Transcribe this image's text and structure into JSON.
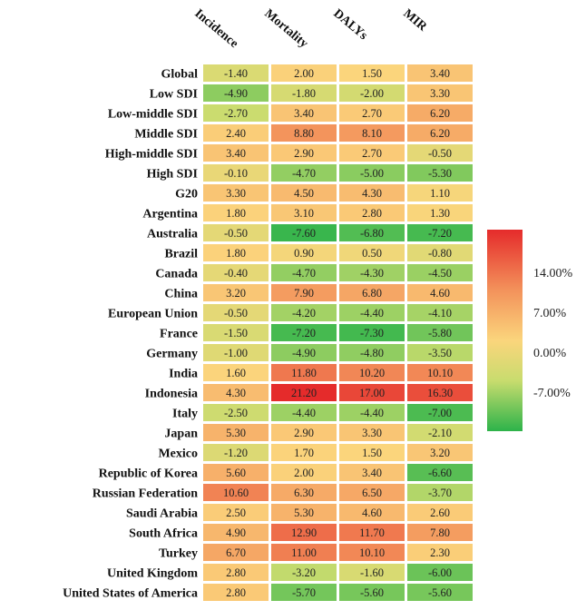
{
  "chart_data": {
    "type": "heatmap",
    "columns": [
      "Incidence",
      "Mortality",
      "DALYs",
      "MIR"
    ],
    "rows": [
      "Global",
      "Low SDI",
      "Low-middle SDI",
      "Middle SDI",
      "High-middle SDI",
      "High SDI",
      "G20",
      "Argentina",
      "Australia",
      "Brazil",
      "Canada",
      "China",
      "European Union",
      "France",
      "Germany",
      "India",
      "Indonesia",
      "Italy",
      "Japan",
      "Mexico",
      "Republic of Korea",
      "Russian Federation",
      "Saudi Arabia",
      "South Africa",
      "Turkey",
      "United Kingdom",
      "United States of America"
    ],
    "values": [
      [
        -1.4,
        2.0,
        1.5,
        3.4
      ],
      [
        -4.9,
        -1.8,
        -2.0,
        3.3
      ],
      [
        -2.7,
        3.4,
        2.7,
        6.2
      ],
      [
        2.4,
        8.8,
        8.1,
        6.2
      ],
      [
        3.4,
        2.9,
        2.7,
        -0.5
      ],
      [
        -0.1,
        -4.7,
        -5.0,
        -5.3
      ],
      [
        3.3,
        4.5,
        4.3,
        1.1
      ],
      [
        1.8,
        3.1,
        2.8,
        1.3
      ],
      [
        -0.5,
        -7.6,
        -6.8,
        -7.2
      ],
      [
        1.8,
        0.9,
        0.5,
        -0.8
      ],
      [
        -0.4,
        -4.7,
        -4.3,
        -4.5
      ],
      [
        3.2,
        7.9,
        6.8,
        4.6
      ],
      [
        -0.5,
        -4.2,
        -4.4,
        -4.1
      ],
      [
        -1.5,
        -7.2,
        -7.3,
        -5.8
      ],
      [
        -1.0,
        -4.9,
        -4.8,
        -3.5
      ],
      [
        1.6,
        11.8,
        10.2,
        10.1
      ],
      [
        4.3,
        21.2,
        17.0,
        16.3
      ],
      [
        -2.5,
        -4.4,
        -4.4,
        -7.0
      ],
      [
        5.3,
        2.9,
        3.3,
        -2.1
      ],
      [
        -1.2,
        1.7,
        1.5,
        3.2
      ],
      [
        5.6,
        2.0,
        3.4,
        -6.6
      ],
      [
        10.6,
        6.3,
        6.5,
        -3.7
      ],
      [
        2.5,
        5.3,
        4.6,
        2.6
      ],
      [
        4.9,
        12.9,
        11.7,
        7.8
      ],
      [
        6.7,
        11.0,
        10.1,
        2.3
      ],
      [
        2.8,
        -3.2,
        -1.6,
        -6.0
      ],
      [
        2.8,
        -5.7,
        -5.6,
        -5.6
      ]
    ],
    "value_labels": [
      [
        "-1.40",
        "2.00",
        "1.50",
        "3.40"
      ],
      [
        "-4.90",
        "-1.80",
        "-2.00",
        "3.30"
      ],
      [
        "-2.70",
        "3.40",
        "2.70",
        "6.20"
      ],
      [
        "2.40",
        "8.80",
        "8.10",
        "6.20"
      ],
      [
        "3.40",
        "2.90",
        "2.70",
        "-0.50"
      ],
      [
        "-0.10",
        "-4.70",
        "-5.00",
        "-5.30"
      ],
      [
        "3.30",
        "4.50",
        "4.30",
        "1.10"
      ],
      [
        "1.80",
        "3.10",
        "2.80",
        "1.30"
      ],
      [
        "-0.50",
        "-7.60",
        "-6.80",
        "-7.20"
      ],
      [
        "1.80",
        "0.90",
        "0.50",
        "-0.80"
      ],
      [
        "-0.40",
        "-4.70",
        "-4.30",
        "-4.50"
      ],
      [
        "3.20",
        "7.90",
        "6.80",
        "4.60"
      ],
      [
        "-0.50",
        "-4.20",
        "-4.40",
        "-4.10"
      ],
      [
        "-1.50",
        "-7.20",
        "-7.30",
        "-5.80"
      ],
      [
        "-1.00",
        "-4.90",
        "-4.80",
        "-3.50"
      ],
      [
        "1.60",
        "11.80",
        "10.20",
        "10.10"
      ],
      [
        "4.30",
        "21.20",
        "17.00",
        "16.30"
      ],
      [
        "-2.50",
        "-4.40",
        "-4.40",
        "-7.00"
      ],
      [
        "5.30",
        "2.90",
        "3.30",
        "-2.10"
      ],
      [
        "-1.20",
        "1.70",
        "1.50",
        "3.20"
      ],
      [
        "5.60",
        "2.00",
        "3.40",
        "-6.60"
      ],
      [
        "10.60",
        "6.30",
        "6.50",
        "-3.70"
      ],
      [
        "2.50",
        "5.30",
        "4.60",
        "2.60"
      ],
      [
        "4.90",
        "12.90",
        "11.70",
        "7.80"
      ],
      [
        "6.70",
        "11.00",
        "10.10",
        "2.30"
      ],
      [
        "2.80",
        "-3.20",
        "-1.60",
        "-6.00"
      ],
      [
        "2.80",
        "-5.70",
        "-5.60",
        "-5.60"
      ]
    ],
    "colorbar": {
      "ticks": [
        14,
        7,
        0,
        -7
      ],
      "tick_labels": [
        "14.00%",
        "7.00%",
        "0.00%",
        "-7.00%"
      ],
      "range": [
        -12,
        21
      ],
      "colors": {
        "low": "#2db34a",
        "mid_low": "#c8dc6e",
        "mid": "#fbd57c",
        "mid_high": "#f3925b",
        "high": "#e52b2b"
      },
      "placement": "right"
    }
  }
}
